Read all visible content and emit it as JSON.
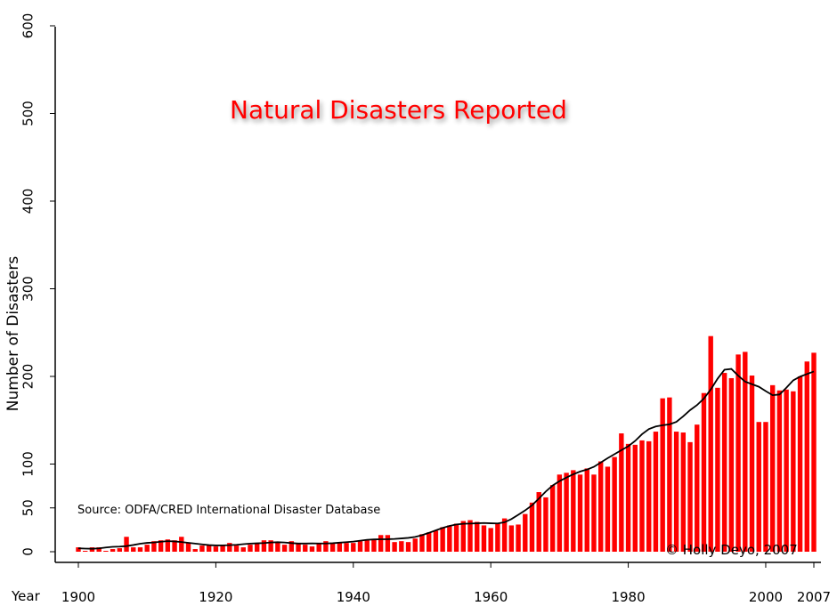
{
  "chart_data": {
    "type": "bar",
    "title": "Natural Disasters Reported",
    "xlabel": "Year",
    "ylabel": "Number of Disasters",
    "source": "Source: ODFA/CRED International Disaster Database",
    "copyright": "© Holly Deyo, 2007",
    "xlim": [
      1900,
      2007
    ],
    "ylim": [
      0,
      600
    ],
    "x_ticks": [
      1900,
      1920,
      1940,
      1960,
      1980,
      2000,
      2007
    ],
    "y_ticks": [
      0,
      50,
      100,
      200,
      300,
      400,
      500,
      600
    ],
    "bar_color": "#ff0000",
    "trend_color": "#000000",
    "grid": false,
    "x": [
      1900,
      1901,
      1902,
      1903,
      1904,
      1905,
      1906,
      1907,
      1908,
      1909,
      1910,
      1911,
      1912,
      1913,
      1914,
      1915,
      1916,
      1917,
      1918,
      1919,
      1920,
      1921,
      1922,
      1923,
      1924,
      1925,
      1926,
      1927,
      1928,
      1929,
      1930,
      1931,
      1932,
      1933,
      1934,
      1935,
      1936,
      1937,
      1938,
      1939,
      1940,
      1941,
      1942,
      1943,
      1944,
      1945,
      1946,
      1947,
      1948,
      1949,
      1950,
      1951,
      1952,
      1953,
      1954,
      1955,
      1956,
      1957,
      1958,
      1959,
      1960,
      1961,
      1962,
      1963,
      1964,
      1965,
      1966,
      1967,
      1968,
      1969,
      1970,
      1971,
      1972,
      1973,
      1974,
      1975,
      1976,
      1977,
      1978,
      1979,
      1980,
      1981,
      1982,
      1983,
      1984,
      1985,
      1986,
      1987,
      1988,
      1989,
      1990,
      1991,
      1992,
      1993,
      1994,
      1995,
      1996,
      1997,
      1998,
      1999,
      2000,
      2001,
      2002,
      2003,
      2004,
      2005,
      2006,
      2007
    ],
    "series": [
      {
        "type": "bar",
        "values": [
          5,
          1,
          5,
          5,
          1,
          3,
          4,
          17,
          5,
          5,
          8,
          12,
          13,
          14,
          13,
          17,
          10,
          3,
          7,
          8,
          6,
          8,
          10,
          7,
          5,
          8,
          10,
          13,
          13,
          11,
          8,
          12,
          10,
          8,
          6,
          9,
          12,
          10,
          10,
          10,
          10,
          12,
          13,
          14,
          19,
          19,
          11,
          12,
          11,
          15,
          20,
          22,
          24,
          28,
          30,
          32,
          35,
          36,
          34,
          30,
          27,
          32,
          38,
          30,
          31,
          43,
          56,
          68,
          62,
          76,
          88,
          90,
          93,
          88,
          95,
          88,
          103,
          97,
          108,
          135,
          123,
          122,
          127,
          126,
          137,
          175,
          176,
          137,
          136,
          125,
          145,
          181,
          246,
          187,
          204,
          198,
          225,
          228,
          201,
          148,
          148,
          190,
          184,
          185,
          183,
          200,
          217,
          227
        ]
      }
    ]
  }
}
